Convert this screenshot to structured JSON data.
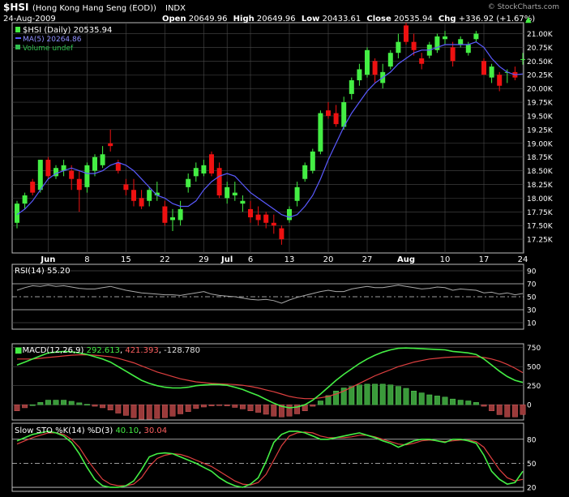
{
  "header": {
    "symbol": "$HSI",
    "name": "(Hong Kong Hang Seng (EOD))",
    "exchange": "INDX",
    "watermark": "© StockCharts.com",
    "date": "24-Aug-2009",
    "ohlc": [
      {
        "label": "Open",
        "value": "20649.96"
      },
      {
        "label": "High",
        "value": "20649.96"
      },
      {
        "label": "Low",
        "value": "20433.61"
      },
      {
        "label": "Close",
        "value": "20535.94"
      }
    ],
    "chg_label": "Chg",
    "chg_value": "+336.92 (+1.67%)",
    "chg_arrow": "▲"
  },
  "legend": [
    {
      "text": "$HSI (Daily) 20535.94",
      "color": "#ffffff"
    },
    {
      "text": "MA(5) 20264.86",
      "color": "#9090ff"
    },
    {
      "text": "Volume undef",
      "color": "#30c050"
    }
  ],
  "colors": {
    "up": "#44ee44",
    "down": "#ee1111",
    "ma": "#5a5aff",
    "grid": "#4a4a4a",
    "frame": "#bdbdbd"
  },
  "chart_data": [
    {
      "type": "candlestick",
      "title": "$HSI (Hong Kong Hang Seng (EOD))",
      "series_name": "$HSI (Daily)",
      "overlay": "MA(5)",
      "ylim": [
        17000,
        21200
      ],
      "y_ticks": [
        17250,
        17500,
        17750,
        18000,
        18250,
        18500,
        18750,
        19000,
        19250,
        19500,
        19750,
        20000,
        20250,
        20500,
        20750,
        21000
      ],
      "y_tick_labels": [
        "17.25K",
        "17.50K",
        "17.75K",
        "18.00K",
        "18.25K",
        "18.50K",
        "18.75K",
        "19.00K",
        "19.25K",
        "19.50K",
        "19.75K",
        "20.00K",
        "20.25K",
        "20.50K",
        "20.75K",
        "21.00K"
      ],
      "x_tick_labels": [
        {
          "i": 4,
          "label": "Jun"
        },
        {
          "i": 9,
          "label": "8"
        },
        {
          "i": 14,
          "label": "15"
        },
        {
          "i": 19,
          "label": "22"
        },
        {
          "i": 24,
          "label": "29"
        },
        {
          "i": 27,
          "label": "Jul"
        },
        {
          "i": 30,
          "label": "6"
        },
        {
          "i": 35,
          "label": "13"
        },
        {
          "i": 40,
          "label": "20"
        },
        {
          "i": 45,
          "label": "27"
        },
        {
          "i": 50,
          "label": "Aug"
        },
        {
          "i": 55,
          "label": "10"
        },
        {
          "i": 60,
          "label": "17"
        },
        {
          "i": 65,
          "label": "24"
        }
      ],
      "candles": [
        [
          17550,
          17950,
          17450,
          17900
        ],
        [
          17900,
          18100,
          17800,
          18050
        ],
        [
          18300,
          18350,
          18050,
          18100
        ],
        [
          18150,
          18700,
          18100,
          18700
        ],
        [
          18700,
          18750,
          18350,
          18400
        ],
        [
          18400,
          18600,
          18350,
          18550
        ],
        [
          18500,
          18700,
          18400,
          18600
        ],
        [
          18500,
          18600,
          18150,
          18350
        ],
        [
          18350,
          18500,
          17750,
          18150
        ],
        [
          18200,
          18650,
          18100,
          18600
        ],
        [
          18500,
          18800,
          18400,
          18750
        ],
        [
          18600,
          18950,
          18550,
          18800
        ],
        [
          19000,
          19250,
          18850,
          18950
        ],
        [
          18650,
          18700,
          18450,
          18500
        ],
        [
          18250,
          18350,
          18050,
          18150
        ],
        [
          18150,
          18350,
          17850,
          17950
        ],
        [
          18000,
          18150,
          17800,
          17850
        ],
        [
          17950,
          18200,
          17850,
          18150
        ],
        [
          18050,
          18300,
          17950,
          18100
        ],
        [
          17850,
          17950,
          17500,
          17550
        ],
        [
          17600,
          17800,
          17400,
          17650
        ],
        [
          17600,
          17950,
          17500,
          17800
        ],
        [
          18200,
          18450,
          18100,
          18350
        ],
        [
          18400,
          18650,
          18300,
          18550
        ],
        [
          18450,
          18700,
          18400,
          18600
        ],
        [
          18800,
          18850,
          18400,
          18450
        ],
        [
          18550,
          18650,
          18000,
          18050
        ],
        [
          18000,
          18300,
          17900,
          18200
        ],
        [
          18050,
          18300,
          17950,
          18100
        ],
        [
          17900,
          18050,
          17750,
          17950
        ],
        [
          17800,
          17950,
          17550,
          17650
        ],
        [
          17700,
          17850,
          17500,
          17600
        ],
        [
          17700,
          17750,
          17450,
          17550
        ],
        [
          17550,
          17700,
          17350,
          17500
        ],
        [
          17450,
          17500,
          17150,
          17250
        ],
        [
          17600,
          17850,
          17550,
          17800
        ],
        [
          17950,
          18300,
          17850,
          18200
        ],
        [
          18350,
          18650,
          18300,
          18600
        ],
        [
          18500,
          18900,
          18450,
          18850
        ],
        [
          18850,
          19600,
          18800,
          19550
        ],
        [
          19600,
          19750,
          19450,
          19500
        ],
        [
          19550,
          19700,
          19300,
          19350
        ],
        [
          19300,
          19850,
          19250,
          19750
        ],
        [
          19900,
          20200,
          19800,
          20150
        ],
        [
          20150,
          20450,
          20050,
          20350
        ],
        [
          20250,
          20750,
          20200,
          20700
        ],
        [
          20500,
          20550,
          20100,
          20250
        ],
        [
          20100,
          20450,
          20000,
          20300
        ],
        [
          20400,
          20700,
          20350,
          20650
        ],
        [
          20650,
          21000,
          20550,
          20850
        ],
        [
          21150,
          21200,
          20800,
          20850
        ],
        [
          20850,
          21000,
          20600,
          20700
        ],
        [
          20550,
          20650,
          20350,
          20450
        ],
        [
          20600,
          20850,
          20550,
          20800
        ],
        [
          20700,
          21000,
          20650,
          20950
        ],
        [
          20900,
          21050,
          20800,
          20950
        ],
        [
          20750,
          20850,
          20400,
          20500
        ],
        [
          20800,
          20950,
          20750,
          20900
        ],
        [
          20650,
          20850,
          20600,
          20800
        ],
        [
          20900,
          21050,
          20850,
          21000
        ],
        [
          20500,
          20550,
          20250,
          20250
        ],
        [
          20200,
          20450,
          20100,
          20400
        ],
        [
          20250,
          20300,
          19950,
          20050
        ],
        [
          20300,
          20350,
          20100,
          20300
        ],
        [
          20300,
          20400,
          20150,
          20200
        ],
        [
          20536,
          20650,
          20434,
          20536
        ]
      ],
      "ma": [
        17700,
        17800,
        17950,
        18150,
        18350,
        18450,
        18500,
        18550,
        18500,
        18450,
        18450,
        18500,
        18600,
        18650,
        18600,
        18500,
        18350,
        18200,
        18050,
        18000,
        17900,
        17850,
        17850,
        17950,
        18150,
        18300,
        18400,
        18450,
        18400,
        18250,
        18100,
        18000,
        17900,
        17800,
        17700,
        17650,
        17700,
        17850,
        18050,
        18350,
        18700,
        19000,
        19300,
        19550,
        19750,
        19950,
        20100,
        20200,
        20300,
        20450,
        20550,
        20650,
        20700,
        20700,
        20750,
        20800,
        20800,
        20800,
        20800,
        20850,
        20750,
        20550,
        20400,
        20300,
        20250,
        20265
      ]
    },
    {
      "type": "line",
      "title": "RSI(14)",
      "value_label": "55.20",
      "ylim": [
        0,
        100
      ],
      "y_ticks": [
        10,
        30,
        50,
        70,
        90
      ],
      "levels": [
        70,
        50,
        30
      ],
      "values": [
        60,
        64,
        67,
        66,
        68,
        66,
        67,
        65,
        63,
        62,
        62,
        64,
        66,
        63,
        60,
        58,
        56,
        55,
        54,
        53,
        53,
        52,
        54,
        56,
        58,
        54,
        52,
        51,
        50,
        48,
        46,
        45,
        46,
        44,
        40,
        45,
        49,
        52,
        55,
        58,
        60,
        58,
        58,
        62,
        64,
        66,
        64,
        64,
        66,
        68,
        66,
        64,
        62,
        63,
        65,
        64,
        60,
        62,
        61,
        60,
        56,
        57,
        54,
        56,
        53,
        55
      ]
    },
    {
      "type": "line",
      "title": "MACD(12,26,9)",
      "value_labels": [
        "292.613",
        "421.393",
        "-128.780"
      ],
      "ylim": [
        -200,
        800
      ],
      "y_ticks": [
        0,
        250,
        500,
        750
      ],
      "series": [
        {
          "name": "MACD",
          "values": [
            520,
            560,
            600,
            640,
            680,
            690,
            700,
            695,
            680,
            660,
            630,
            600,
            560,
            500,
            440,
            380,
            320,
            280,
            250,
            230,
            220,
            220,
            230,
            250,
            260,
            265,
            265,
            255,
            230,
            200,
            160,
            120,
            70,
            20,
            -20,
            -40,
            -30,
            0,
            60,
            140,
            230,
            320,
            400,
            470,
            540,
            600,
            650,
            690,
            720,
            740,
            745,
            740,
            735,
            730,
            725,
            720,
            700,
            690,
            680,
            660,
            600,
            520,
            440,
            370,
            320,
            293
          ]
        },
        {
          "name": "Signal",
          "values": [
            600,
            600,
            600,
            610,
            620,
            630,
            640,
            650,
            655,
            655,
            650,
            640,
            630,
            610,
            580,
            550,
            510,
            470,
            430,
            400,
            370,
            340,
            320,
            300,
            290,
            280,
            275,
            270,
            265,
            255,
            240,
            220,
            195,
            170,
            140,
            110,
            90,
            80,
            80,
            90,
            110,
            140,
            180,
            230,
            280,
            330,
            380,
            420,
            460,
            500,
            530,
            560,
            580,
            600,
            610,
            620,
            625,
            630,
            630,
            630,
            620,
            600,
            570,
            530,
            480,
            421
          ]
        },
        {
          "name": "Histogram",
          "values": [
            -80,
            -40,
            0,
            30,
            60,
            60,
            60,
            45,
            25,
            5,
            -20,
            -40,
            -70,
            -110,
            -140,
            -170,
            -190,
            -190,
            -180,
            -170,
            -150,
            -120,
            -90,
            -50,
            -30,
            -15,
            -10,
            -15,
            -35,
            -55,
            -80,
            -100,
            -125,
            -150,
            -160,
            -150,
            -120,
            -80,
            -20,
            50,
            120,
            180,
            220,
            240,
            260,
            270,
            270,
            270,
            260,
            240,
            215,
            180,
            155,
            130,
            115,
            100,
            75,
            60,
            50,
            30,
            -20,
            -80,
            -130,
            -160,
            -160,
            -129
          ]
        }
      ]
    },
    {
      "type": "line",
      "title": "Slow STO %K(14) %D(3)",
      "value_labels": [
        "40.10",
        "30.04"
      ],
      "ylim": [
        15,
        100
      ],
      "y_ticks": [
        20,
        50,
        80
      ],
      "levels": [
        80,
        50,
        20
      ],
      "series": [
        {
          "name": "%K",
          "values": [
            78,
            82,
            86,
            88,
            90,
            88,
            84,
            76,
            62,
            45,
            30,
            22,
            20,
            20,
            22,
            28,
            42,
            58,
            62,
            63,
            62,
            58,
            54,
            50,
            45,
            40,
            32,
            26,
            22,
            20,
            24,
            32,
            52,
            76,
            86,
            90,
            90,
            88,
            84,
            80,
            80,
            82,
            84,
            86,
            88,
            85,
            82,
            78,
            75,
            70,
            74,
            78,
            80,
            80,
            78,
            76,
            80,
            80,
            78,
            75,
            60,
            40,
            30,
            24,
            26,
            40
          ]
        },
        {
          "name": "%D",
          "values": [
            74,
            78,
            82,
            85,
            88,
            88,
            86,
            80,
            70,
            55,
            42,
            30,
            24,
            22,
            22,
            24,
            32,
            46,
            56,
            60,
            62,
            61,
            58,
            54,
            50,
            46,
            40,
            34,
            28,
            24,
            23,
            26,
            36,
            54,
            72,
            84,
            88,
            89,
            88,
            84,
            82,
            82,
            82,
            83,
            85,
            85,
            83,
            80,
            77,
            74,
            73,
            75,
            78,
            79,
            78,
            77,
            78,
            79,
            79,
            77,
            70,
            56,
            42,
            32,
            28,
            30
          ]
        }
      ]
    }
  ]
}
